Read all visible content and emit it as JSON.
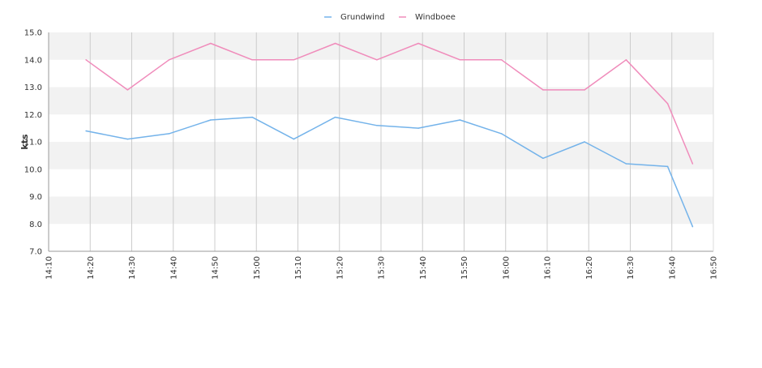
{
  "chart_data": {
    "type": "line",
    "title": "",
    "xlabel": "",
    "ylabel": "kts",
    "ylim": [
      7.0,
      15.0
    ],
    "y_ticks": [
      "7.0",
      "8.0",
      "9.0",
      "10.0",
      "11.0",
      "12.0",
      "13.0",
      "14.0",
      "15.0"
    ],
    "x_ticks": [
      "14:10",
      "14:20",
      "14:30",
      "14:40",
      "14:50",
      "15:00",
      "15:10",
      "15:20",
      "15:30",
      "15:40",
      "15:50",
      "16:00",
      "16:10",
      "16:20",
      "16:30",
      "16:40",
      "16:50"
    ],
    "x_range": [
      "14:10",
      "16:50"
    ],
    "legend_position": "top-center",
    "grid": "vertical lines and alternating horizontal bands",
    "x": [
      "14:19",
      "14:29",
      "14:39",
      "14:49",
      "14:59",
      "15:09",
      "15:19",
      "15:29",
      "15:39",
      "15:49",
      "15:59",
      "16:09",
      "16:19",
      "16:29",
      "16:39",
      "16:45"
    ],
    "series": [
      {
        "name": "Grundwind",
        "color": "#74b3ea",
        "values": [
          11.4,
          11.1,
          11.3,
          11.8,
          11.9,
          11.1,
          11.9,
          11.6,
          11.5,
          11.8,
          11.3,
          10.4,
          11.0,
          10.2,
          10.1,
          7.9
        ]
      },
      {
        "name": "Windboee",
        "color": "#f08cbb",
        "values": [
          14.0,
          12.9,
          14.0,
          14.6,
          14.0,
          14.0,
          14.6,
          14.0,
          14.6,
          14.0,
          14.0,
          12.9,
          12.9,
          14.0,
          12.4,
          10.2
        ]
      }
    ]
  },
  "colors": {
    "band": "#f2f2f2",
    "grid": "#cccccc",
    "axis": "#999999"
  }
}
